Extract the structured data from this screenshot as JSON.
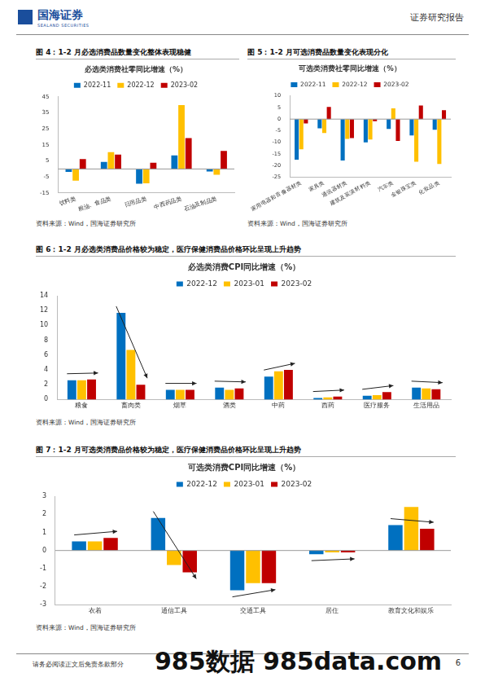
{
  "header": {
    "company": "国海证券",
    "company_en": "SEALAND SECURITIES",
    "report_type": "证券研究报告"
  },
  "figures": [
    {
      "caption": "图 4：1-2 月必选消费品数量变化整体表现稳健",
      "source": "资料来源：Wind，国海证券研究所"
    },
    {
      "caption": "图 5：1-2 月可选消费品数量变化表现分化",
      "source": "资料来源：Wind，国海证券研究所"
    },
    {
      "caption": "图 6：1-2 月必选类消费品价格较为稳定，医疗保健消费品价格环比呈现上升趋势",
      "source": "资料来源：Wind，国海证券研究所"
    },
    {
      "caption": "图 7：1-2 月可选类消费品价格较为稳定，医疗保健消费品价格环比呈现上升趋势",
      "source": "资料来源：Wind，国海证券研究所"
    }
  ],
  "chart_data": [
    {
      "type": "bar",
      "title": "必选类消费社零同比增速（%）",
      "categories": [
        "饮料类",
        "粮油、食品类",
        "日用品类",
        "中西药品类",
        "石油及制品类"
      ],
      "series": [
        {
          "name": "2022-11",
          "color": "#0070C0",
          "values": [
            -1.8,
            4.4,
            -9.2,
            8.4,
            -1.6
          ]
        },
        {
          "name": "2022-12",
          "color": "#FFC000",
          "values": [
            -7.3,
            10.5,
            -8.9,
            39.8,
            -3.6
          ]
        },
        {
          "name": "2023-02",
          "color": "#C00000",
          "values": [
            6.2,
            9.0,
            3.9,
            19.3,
            11.3
          ]
        }
      ],
      "ylim": [
        -15,
        45
      ],
      "yticks": [
        -15,
        -5,
        5,
        15,
        25,
        35,
        45
      ],
      "grid": false,
      "legend": "top"
    },
    {
      "type": "bar",
      "title": "可选类消费社零同比增速（%）",
      "categories": [
        "家用电器和音像器材类",
        "家具类",
        "通讯器材类",
        "建筑及装潢材料类",
        "汽车类",
        "金银珠宝类",
        "化妆品类"
      ],
      "series": [
        {
          "name": "2022-11",
          "color": "#0070C0",
          "values": [
            -17.5,
            -4.0,
            -17.8,
            -10.0,
            -4.2,
            -7.0,
            -4.6
          ]
        },
        {
          "name": "2022-12",
          "color": "#FFC000",
          "values": [
            -13.0,
            -6.0,
            -8.5,
            -8.8,
            4.6,
            -18.4,
            -19.3
          ]
        },
        {
          "name": "2023-02",
          "color": "#C00000",
          "values": [
            -1.9,
            5.2,
            -8.2,
            -0.9,
            -9.4,
            5.9,
            3.8
          ]
        }
      ],
      "ylim": [
        -25,
        10
      ],
      "yticks": [
        -25,
        -20,
        -15,
        -10,
        -5,
        0,
        5,
        10
      ],
      "grid": false,
      "legend": "top"
    },
    {
      "type": "bar",
      "title": "必选类消费CPI同比增速（%）",
      "categories": [
        "粮食",
        "畜肉类",
        "烟草",
        "酒类",
        "中药",
        "西药",
        "医疗服务",
        "生活用品"
      ],
      "series": [
        {
          "name": "2022-12",
          "color": "#0070C0",
          "values": [
            2.6,
            11.7,
            1.3,
            1.6,
            3.1,
            0.2,
            0.5,
            1.6
          ]
        },
        {
          "name": "2023-01",
          "color": "#FFC000",
          "values": [
            2.6,
            6.7,
            1.3,
            1.3,
            3.8,
            0.3,
            0.6,
            1.5
          ]
        },
        {
          "name": "2023-02",
          "color": "#C00000",
          "values": [
            2.7,
            2.0,
            1.3,
            1.5,
            4.0,
            0.4,
            1.0,
            1.4
          ]
        }
      ],
      "ylim": [
        0,
        14
      ],
      "yticks": [
        0,
        2,
        4,
        6,
        8,
        10,
        12,
        14
      ],
      "grid": false,
      "legend": "top"
    },
    {
      "type": "bar",
      "title": "可选类消费CPI同比增速（%）",
      "categories": [
        "衣着",
        "通信工具",
        "交通工具",
        "居住",
        "教育文化和娱乐"
      ],
      "series": [
        {
          "name": "2022-12",
          "color": "#0070C0",
          "values": [
            0.5,
            1.8,
            -2.2,
            -0.2,
            1.4
          ]
        },
        {
          "name": "2023-01",
          "color": "#FFC000",
          "values": [
            0.5,
            -0.8,
            -1.8,
            -0.1,
            2.4
          ]
        },
        {
          "name": "2023-02",
          "color": "#C00000",
          "values": [
            0.7,
            -1.2,
            -1.8,
            -0.1,
            1.2
          ]
        }
      ],
      "ylim": [
        -3,
        3
      ],
      "yticks": [
        -3,
        -2,
        -1,
        0,
        1,
        2,
        3
      ],
      "grid": false,
      "legend": "top"
    }
  ],
  "footer": {
    "disclaimer": "请务必阅读正文后免责条款部分",
    "page": 6
  },
  "watermark": "985数据 985data.com"
}
